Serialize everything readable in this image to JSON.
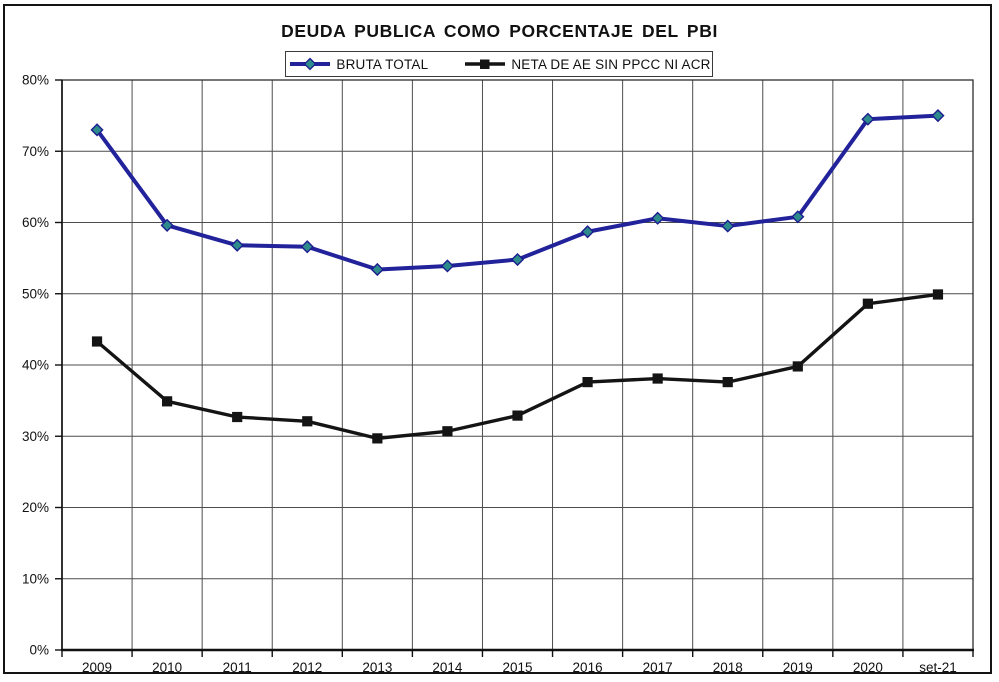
{
  "window": {
    "background_color": "#ffffff",
    "frame_border_color": "#141414"
  },
  "chart_data": {
    "type": "line",
    "title": "DEUDA PUBLICA COMO PORCENTAJE DEL PBI",
    "xlabel": "",
    "ylabel": "",
    "categories": [
      "2009",
      "2010",
      "2011",
      "2012",
      "2013",
      "2014",
      "2015",
      "2016",
      "2017",
      "2018",
      "2019",
      "2020",
      "set-21"
    ],
    "series": [
      {
        "name": "BRUTA TOTAL",
        "values": [
          73.0,
          59.6,
          56.8,
          56.6,
          53.4,
          53.9,
          54.8,
          58.7,
          60.6,
          59.5,
          60.8,
          74.5,
          75.0
        ],
        "line_color": "#22229b",
        "marker": "diamond",
        "marker_fill": "#2e8b8b",
        "marker_stroke": "#1c1c8f",
        "line_width": 4
      },
      {
        "name": "NETA DE AE SIN PPCC NI ACR",
        "values": [
          43.3,
          34.9,
          32.7,
          32.1,
          29.7,
          30.7,
          32.9,
          37.6,
          38.1,
          37.6,
          39.8,
          48.6,
          49.9
        ],
        "line_color": "#141414",
        "marker": "square",
        "marker_fill": "#141414",
        "marker_stroke": "#141414",
        "line_width": 3.4
      }
    ],
    "ylim": [
      0,
      80
    ],
    "ytick_labels": [
      "0%",
      "10%",
      "20%",
      "30%",
      "40%",
      "50%",
      "60%",
      "70%",
      "80%"
    ],
    "ytick_values": [
      0,
      10,
      20,
      30,
      40,
      50,
      60,
      70,
      80
    ],
    "grid": true,
    "gridline_color": "#4d4d4d",
    "legend_position": "top-center"
  }
}
